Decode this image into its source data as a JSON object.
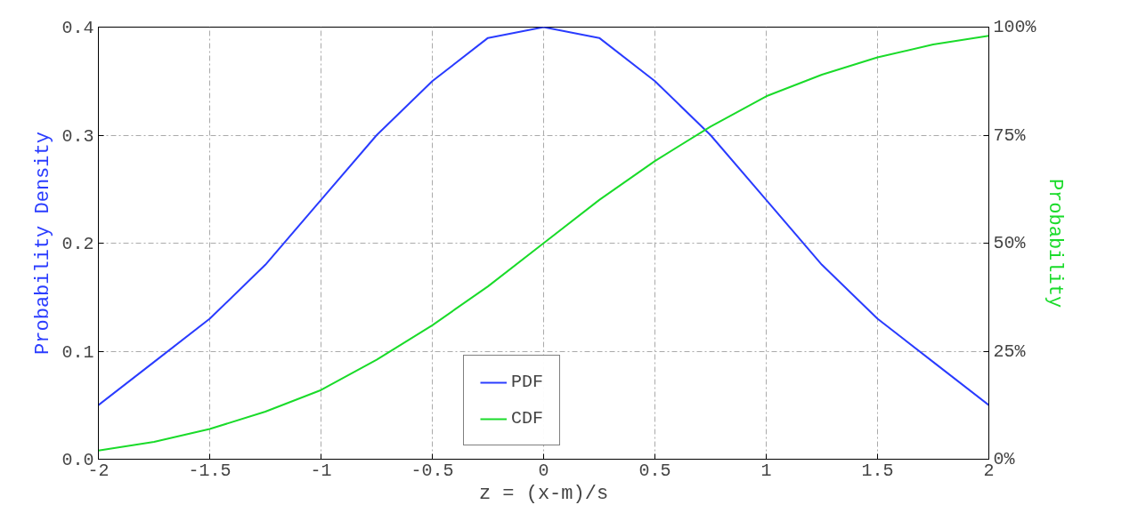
{
  "chart_data": {
    "type": "line",
    "xlabel": "z = (x-m)/s",
    "ylabel": "Probability Density",
    "y2label": "Probability",
    "x": [
      -2,
      -1.75,
      -1.5,
      -1.25,
      -1,
      -0.75,
      -0.5,
      -0.25,
      0,
      0.25,
      0.5,
      0.75,
      1,
      1.25,
      1.5,
      1.75,
      2
    ],
    "series": [
      {
        "name": "PDF",
        "color": "#2a3cff",
        "values": [
          0.05,
          0.09,
          0.13,
          0.18,
          0.24,
          0.3,
          0.35,
          0.39,
          0.4,
          0.39,
          0.35,
          0.3,
          0.24,
          0.18,
          0.13,
          0.09,
          0.05
        ]
      },
      {
        "name": "CDF",
        "color": "#1adb2a",
        "axis": "y2",
        "values": [
          2,
          4,
          7,
          11,
          16,
          23,
          31,
          40,
          50,
          60,
          69,
          77,
          84,
          89,
          93,
          96,
          98
        ]
      }
    ],
    "xlim": [
      -2,
      2
    ],
    "xticks": [
      {
        "value": -2,
        "label": "-2"
      },
      {
        "value": -1.5,
        "label": "-1.5"
      },
      {
        "value": -1,
        "label": "-1"
      },
      {
        "value": -0.5,
        "label": "-0.5"
      },
      {
        "value": 0,
        "label": "0"
      },
      {
        "value": 0.5,
        "label": "0.5"
      },
      {
        "value": 1,
        "label": "1"
      },
      {
        "value": 1.5,
        "label": "1.5"
      },
      {
        "value": 2,
        "label": "2"
      }
    ],
    "ylim": [
      0,
      0.4
    ],
    "yticks": [
      {
        "value": 0,
        "label": "0.0"
      },
      0.1,
      0.2,
      0.3,
      0.4
    ],
    "y2lim": [
      0,
      100
    ],
    "y2ticks": [
      {
        "value": 0,
        "label": "0%"
      },
      {
        "value": 25,
        "label": "25%"
      },
      {
        "value": 50,
        "label": "50%"
      },
      {
        "value": 75,
        "label": "75%"
      },
      {
        "value": 100,
        "label": "100%"
      }
    ],
    "grid": true,
    "legend": "bottom",
    "line_style": "solid",
    "marker": "none"
  }
}
